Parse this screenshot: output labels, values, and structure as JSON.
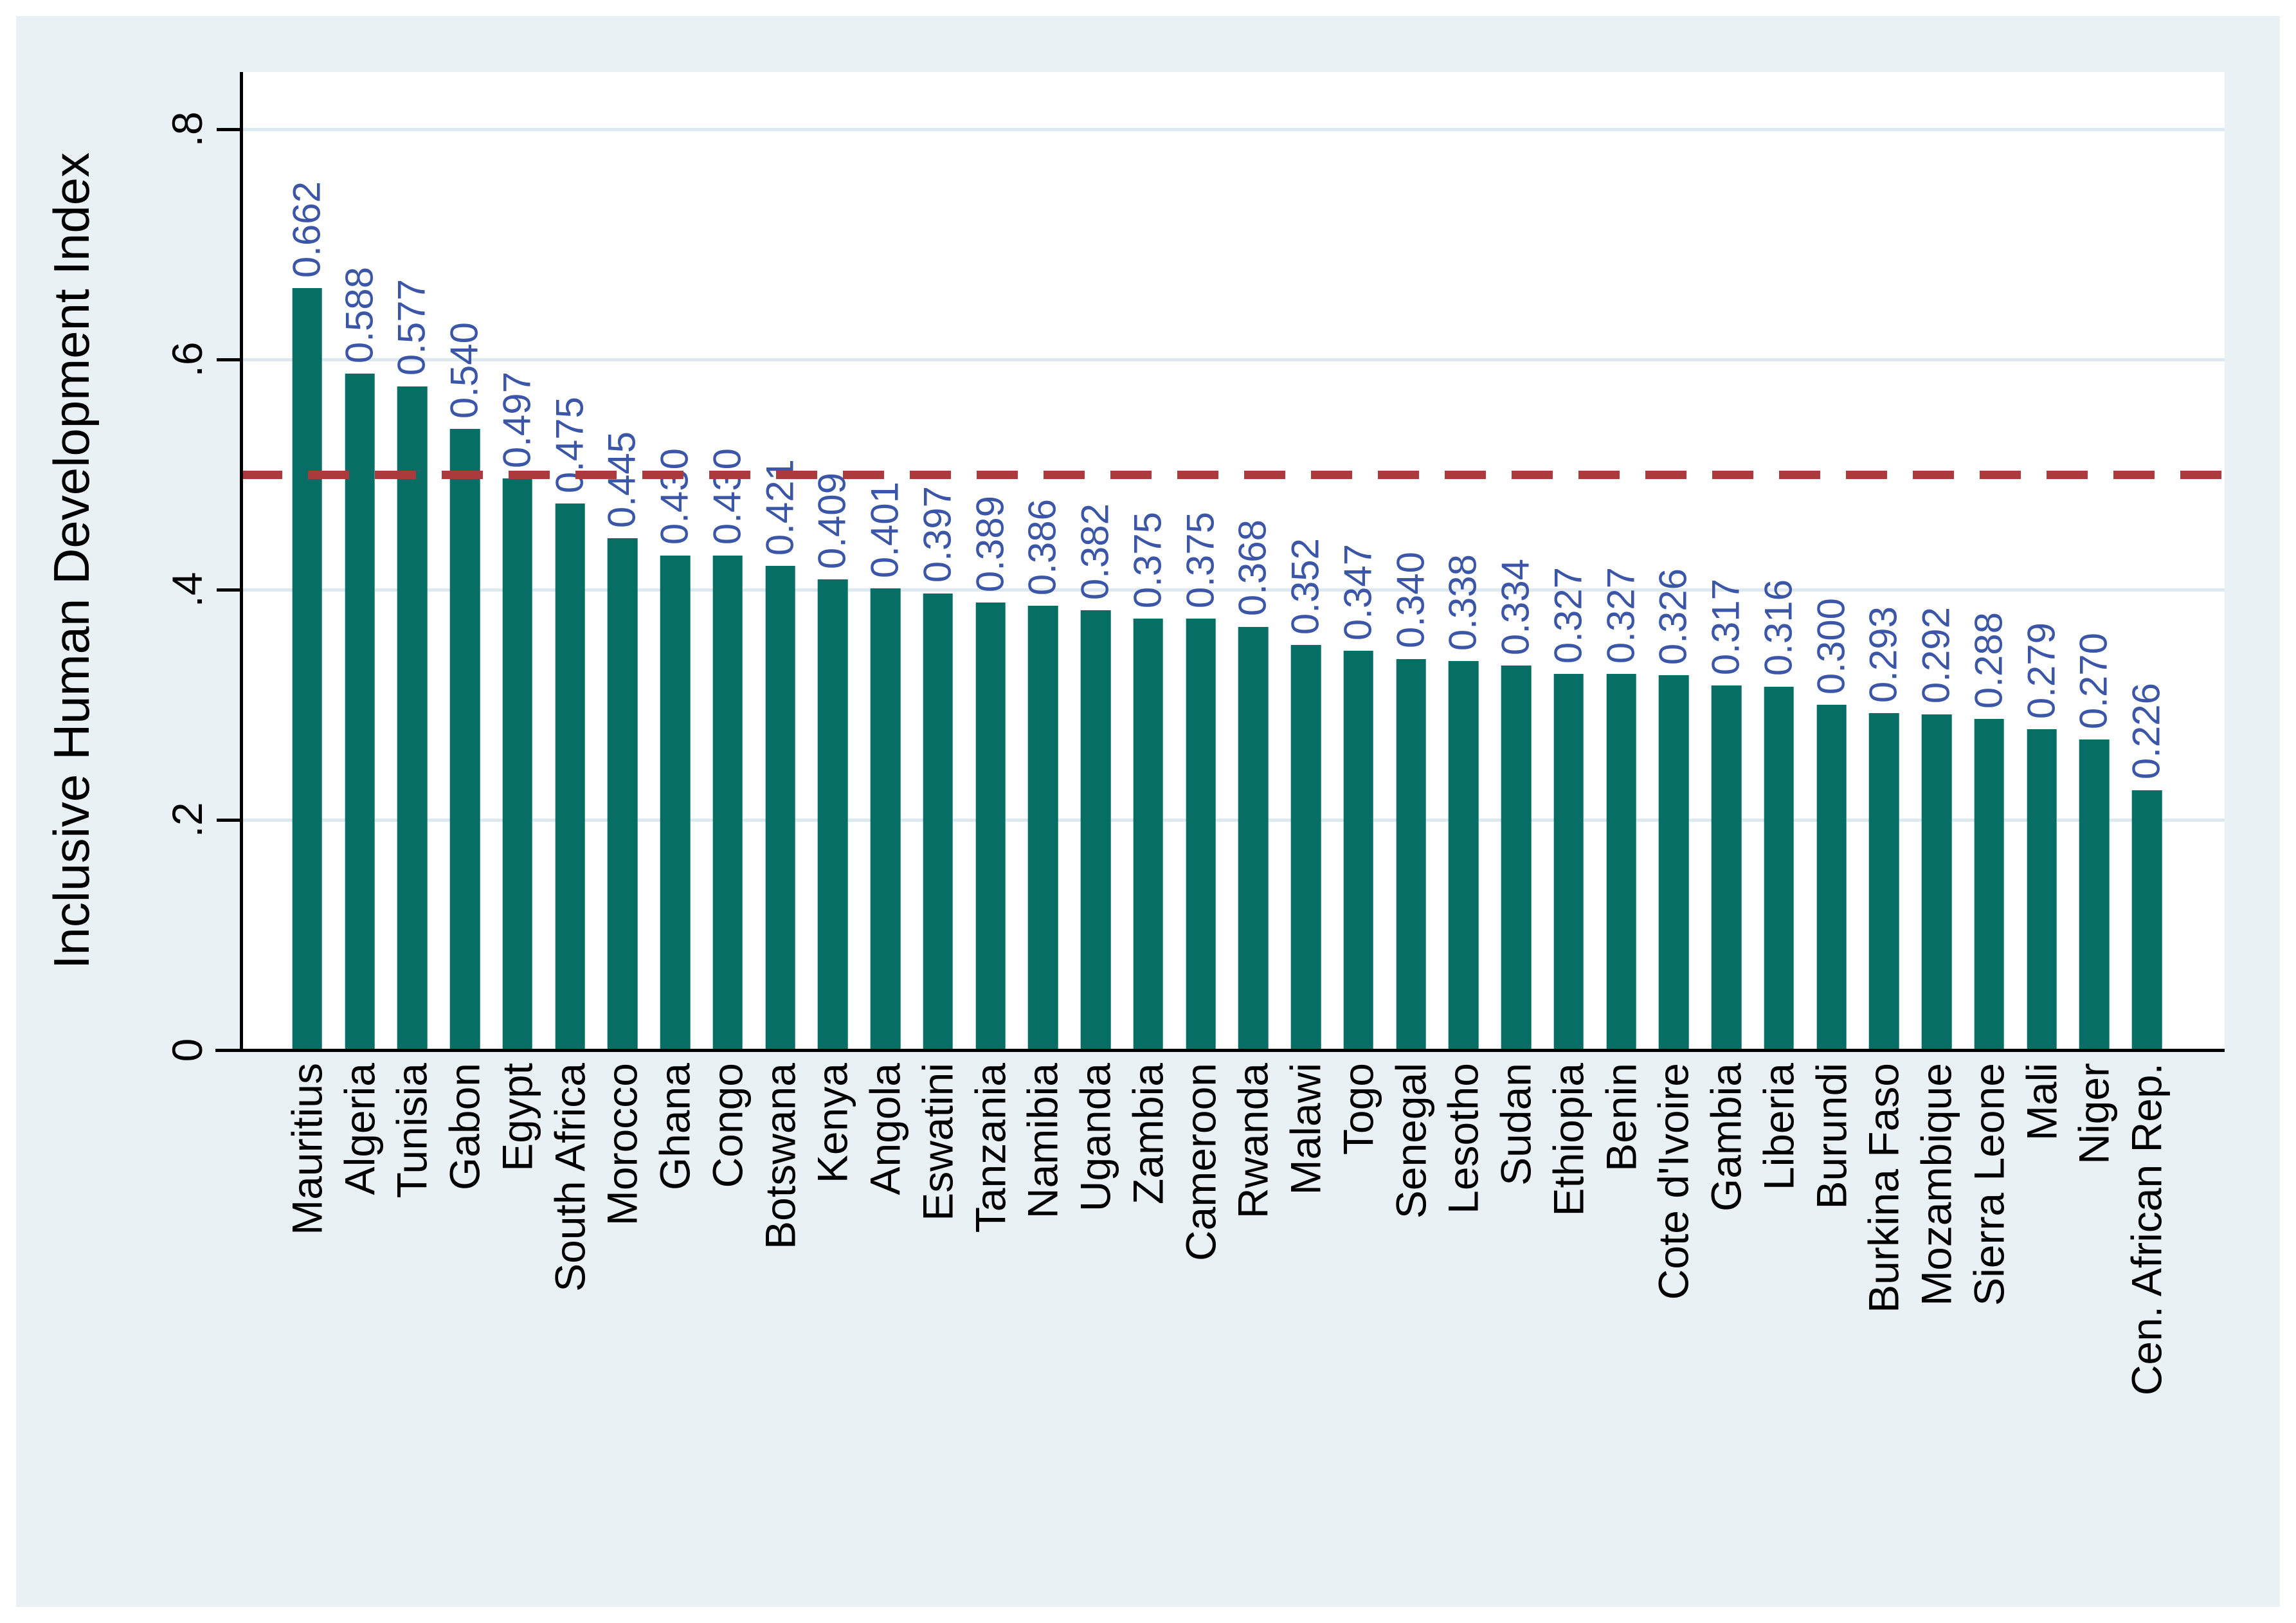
{
  "figure": {
    "background_color": "#eaf1f5",
    "plot_background_color": "#ffffff",
    "gridline_color": "#dde9f1"
  },
  "chart_data": {
    "type": "bar",
    "title": "",
    "xlabel": "",
    "ylabel": "Inclusive Human Development Index",
    "ylim": [
      0,
      0.85
    ],
    "grid": true,
    "legend": "none",
    "yticks": [
      {
        "value": 0,
        "label": "0"
      },
      {
        "value": 0.2,
        "label": ".2"
      },
      {
        "value": 0.4,
        "label": ".4"
      },
      {
        "value": 0.6,
        "label": ".6"
      },
      {
        "value": 0.8,
        "label": ".8"
      }
    ],
    "reference_line": {
      "value": 0.5,
      "style": "dashed",
      "color": "#ac3a3c"
    },
    "bar_color": "#066e64",
    "value_label_color": "#3b56a7",
    "categories": [
      "Mauritius",
      "Algeria",
      "Tunisia",
      "Gabon",
      "Egypt",
      "South Africa",
      "Morocco",
      "Ghana",
      "Congo",
      "Botswana",
      "Kenya",
      "Angola",
      "Eswatini",
      "Tanzania",
      "Namibia",
      "Uganda",
      "Zambia",
      "Cameroon",
      "Rwanda",
      "Malawi",
      "Togo",
      "Senegal",
      "Lesotho",
      "Sudan",
      "Ethiopia",
      "Benin",
      "Cote d'Ivoire",
      "Gambia",
      "Liberia",
      "Burundi",
      "Burkina Faso",
      "Mozambique",
      "Sierra Leone",
      "Mali",
      "Niger",
      "Cen. African Rep."
    ],
    "values": [
      0.662,
      0.588,
      0.577,
      0.54,
      0.497,
      0.475,
      0.445,
      0.43,
      0.43,
      0.421,
      0.409,
      0.401,
      0.397,
      0.389,
      0.386,
      0.382,
      0.375,
      0.375,
      0.368,
      0.352,
      0.347,
      0.34,
      0.338,
      0.334,
      0.327,
      0.327,
      0.326,
      0.317,
      0.316,
      0.3,
      0.293,
      0.292,
      0.288,
      0.279,
      0.27,
      0.226
    ],
    "value_labels": [
      "0.662",
      "0.588",
      "0.577",
      "0.540",
      "0.497",
      "0.475",
      "0.445",
      "0.430",
      "0.430",
      "0.421",
      "0.409",
      "0.401",
      "0.397",
      "0.389",
      "0.386",
      "0.382",
      "0.375",
      "0.375",
      "0.368",
      "0.352",
      "0.347",
      "0.340",
      "0.338",
      "0.334",
      "0.327",
      "0.327",
      "0.326",
      "0.317",
      "0.316",
      "0.300",
      "0.293",
      "0.292",
      "0.288",
      "0.279",
      "0.270",
      "0.226"
    ]
  }
}
